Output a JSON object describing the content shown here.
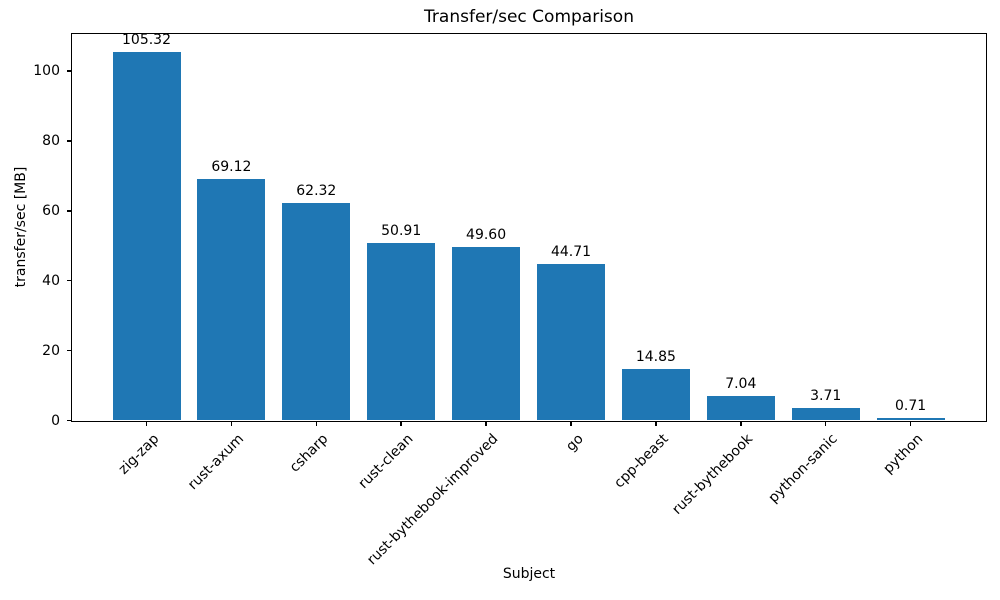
{
  "title": "Transfer/sec Comparison",
  "chart_data": {
    "type": "bar",
    "title": "Transfer/sec Comparison",
    "xlabel": "Subject",
    "ylabel": "transfer/sec [MB]",
    "categories": [
      "zig-zap",
      "rust-axum",
      "csharp",
      "rust-clean",
      "rust-bythebook-improved",
      "go",
      "cpp-beast",
      "rust-bythebook",
      "python-sanic",
      "python"
    ],
    "values": [
      105.32,
      69.12,
      62.32,
      50.91,
      49.6,
      44.71,
      14.85,
      7.04,
      3.71,
      0.71
    ],
    "value_labels": [
      "105.32",
      "69.12",
      "62.32",
      "50.91",
      "49.60",
      "44.71",
      "14.85",
      "7.04",
      "3.71",
      "0.71"
    ],
    "bar_color": "#1f77b4",
    "axis_color": "#000000",
    "ylim": [
      0,
      110.6
    ],
    "yticks": [
      0,
      20,
      40,
      60,
      80,
      100
    ],
    "x_tick_rotation_deg": 45,
    "grid": false,
    "legend": null
  }
}
